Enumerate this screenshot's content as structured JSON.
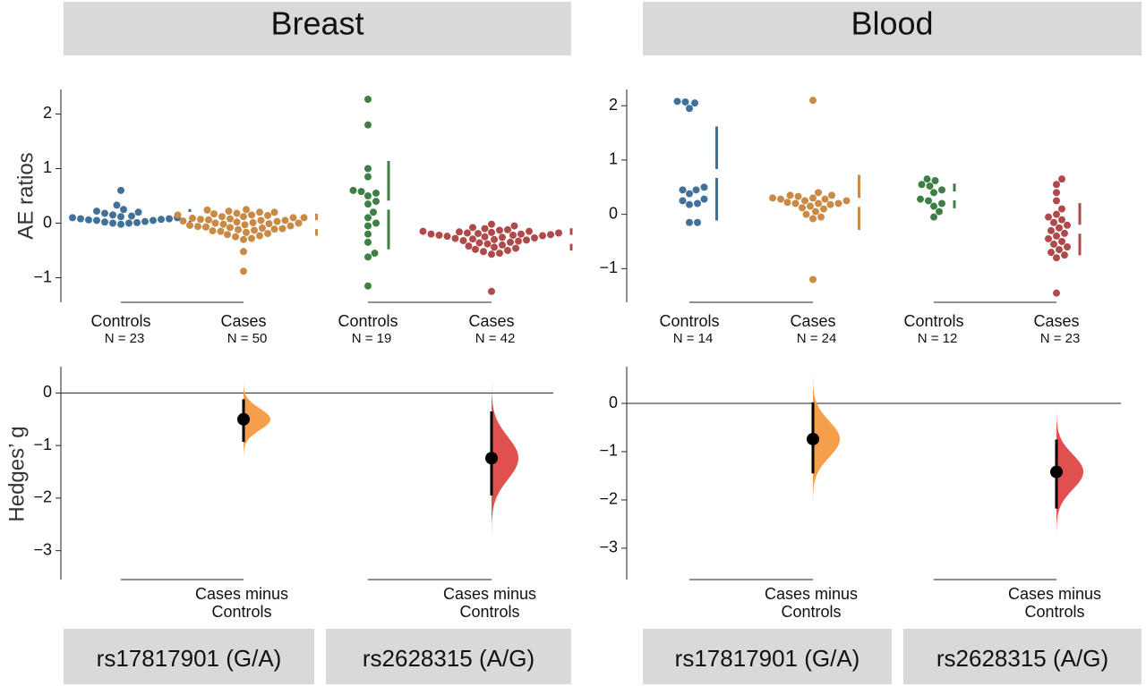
{
  "chart_data": [
    {
      "type": "estimation",
      "title": "Breast",
      "ylabel": "AE ratios",
      "effect_ylabel": "Hedges’ g",
      "ylim": [
        -1.45,
        2.45
      ],
      "yticks": [
        {
          "value": -1,
          "label": "−1"
        },
        0,
        1,
        2
      ],
      "effect_ylim": [
        -3.55,
        0.5
      ],
      "effect_yticks": [
        {
          "value": -3,
          "label": "−3"
        },
        {
          "value": -2,
          "label": "−2"
        },
        {
          "value": -1,
          "label": "−1"
        },
        0
      ],
      "groups": [
        {
          "name": "Controls",
          "n_label": "N = 23",
          "color": "#41719a",
          "values": [
            0.6,
            0.33,
            0.25,
            0.22,
            0.2,
            0.18,
            0.15,
            0.13,
            0.12,
            0.1,
            0.1,
            0.08,
            0.08,
            0.07,
            0.06,
            0.05,
            0.05,
            0.03,
            0.02,
            0.01,
            0,
            0,
            -0.02
          ]
        },
        {
          "name": "Cases",
          "n_label": "N = 50",
          "color": "#c98a45",
          "values": [
            0.25,
            0.24,
            0.22,
            0.2,
            0.2,
            0.18,
            0.17,
            0.15,
            0.15,
            0.14,
            0.12,
            0.12,
            0.1,
            0.1,
            0.09,
            0.08,
            0.07,
            0.06,
            0.05,
            0.05,
            0.04,
            0.03,
            0.02,
            0.01,
            0,
            0,
            -0.01,
            -0.02,
            -0.03,
            -0.04,
            -0.05,
            -0.06,
            -0.07,
            -0.08,
            -0.09,
            -0.1,
            -0.11,
            -0.12,
            -0.13,
            -0.14,
            -0.15,
            -0.17,
            -0.19,
            -0.21,
            -0.23,
            -0.25,
            -0.28,
            -0.3,
            -0.52,
            -0.88
          ]
        },
        {
          "name": "Controls",
          "n_label": "N = 19",
          "color": "#3f7f45",
          "values": [
            2.27,
            1.8,
            1.0,
            0.85,
            0.6,
            0.58,
            0.55,
            0.5,
            0.4,
            0.35,
            0.2,
            0.1,
            0.0,
            -0.05,
            -0.2,
            -0.35,
            -0.55,
            -0.62,
            -1.15
          ]
        },
        {
          "name": "Cases",
          "n_label": "N = 42",
          "color": "#b04a4a",
          "values": [
            -0.02,
            -0.05,
            -0.08,
            -0.1,
            -0.12,
            -0.13,
            -0.15,
            -0.15,
            -0.16,
            -0.17,
            -0.18,
            -0.18,
            -0.19,
            -0.2,
            -0.2,
            -0.21,
            -0.22,
            -0.22,
            -0.23,
            -0.24,
            -0.25,
            -0.26,
            -0.27,
            -0.28,
            -0.29,
            -0.3,
            -0.31,
            -0.32,
            -0.33,
            -0.35,
            -0.36,
            -0.38,
            -0.4,
            -0.42,
            -0.44,
            -0.46,
            -0.48,
            -0.5,
            -0.52,
            -0.55,
            -0.57,
            -1.25
          ]
        }
      ],
      "effects": [
        {
          "label_lines": [
            "Cases minus",
            "Controls"
          ],
          "value": -0.5,
          "ci": [
            -0.93,
            -0.12
          ],
          "color": "#f59e4c"
        },
        {
          "label_lines": [
            "Cases minus",
            "Controls"
          ],
          "value": -1.24,
          "ci": [
            -1.95,
            -0.35
          ],
          "color": "#e0504f"
        }
      ],
      "footers": [
        "rs17817901 (G/A)",
        "rs2628315 (A/G)"
      ]
    },
    {
      "type": "estimation",
      "title": "Blood",
      "ylim": [
        -1.62,
        2.3
      ],
      "yticks": [
        {
          "value": -1,
          "label": "−1"
        },
        0,
        1,
        2
      ],
      "effect_ylim": [
        -3.65,
        0.76
      ],
      "effect_yticks": [
        {
          "value": -3,
          "label": "−3"
        },
        {
          "value": -2,
          "label": "−2"
        },
        {
          "value": -1,
          "label": "−1"
        },
        0
      ],
      "groups": [
        {
          "name": "Controls",
          "n_label": "N = 14",
          "color": "#41719a",
          "values": [
            2.08,
            2.07,
            2.05,
            1.95,
            0.5,
            0.45,
            0.45,
            0.38,
            0.28,
            0.25,
            0.2,
            0.18,
            -0.15,
            -0.15
          ]
        },
        {
          "name": "Cases",
          "n_label": "N = 24",
          "color": "#c98a45",
          "values": [
            2.1,
            0.4,
            0.35,
            0.35,
            0.33,
            0.3,
            0.3,
            0.28,
            0.28,
            0.25,
            0.25,
            0.22,
            0.2,
            0.2,
            0.2,
            0.18,
            0.15,
            0.12,
            0.1,
            0.05,
            0.0,
            -0.05,
            -0.08,
            -1.2
          ]
        },
        {
          "name": "Controls",
          "n_label": "N = 12",
          "color": "#3f7f45",
          "values": [
            0.65,
            0.62,
            0.55,
            0.52,
            0.45,
            0.4,
            0.28,
            0.25,
            0.2,
            0.15,
            0.05,
            -0.05
          ]
        },
        {
          "name": "Cases",
          "n_label": "N = 23",
          "color": "#b04a4a",
          "values": [
            0.65,
            0.55,
            0.4,
            0.25,
            0.1,
            0.0,
            -0.05,
            -0.1,
            -0.15,
            -0.2,
            -0.25,
            -0.3,
            -0.35,
            -0.4,
            -0.45,
            -0.5,
            -0.55,
            -0.6,
            -0.65,
            -0.7,
            -0.75,
            -0.8,
            -1.45
          ]
        }
      ],
      "effects": [
        {
          "label_lines": [
            "Cases minus",
            "Controls"
          ],
          "value": -0.74,
          "ci": [
            -1.45,
            0.02
          ],
          "color": "#f59e4c"
        },
        {
          "label_lines": [
            "Cases minus",
            "Controls"
          ],
          "value": -1.42,
          "ci": [
            -2.18,
            -0.75
          ],
          "color": "#e0504f"
        }
      ],
      "footers": [
        "rs17817901 (G/A)",
        "rs2628315 (A/G)"
      ]
    }
  ]
}
